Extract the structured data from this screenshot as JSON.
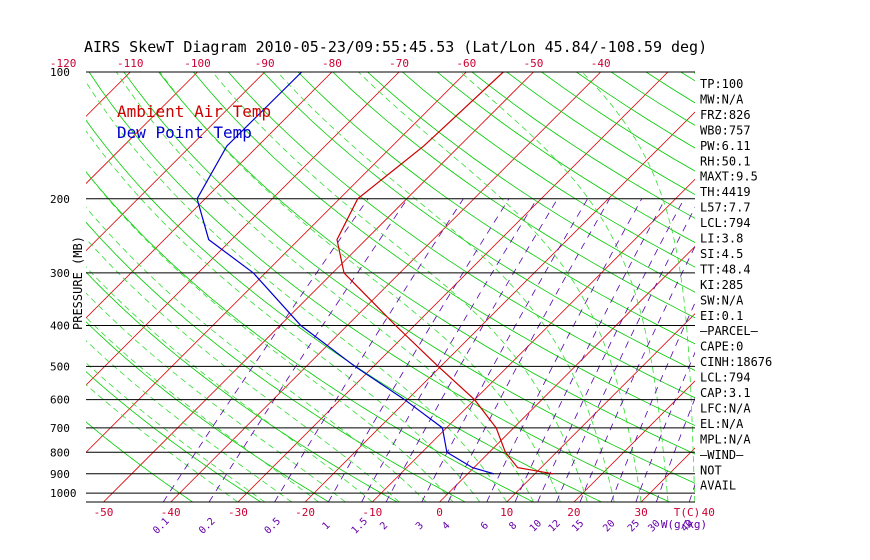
{
  "chart_data": {
    "type": "line",
    "title": "AIRS SkewT Diagram 2010-05-23/09:55:45.53 (Lat/Lon 45.84/-108.59 deg)",
    "ylabel": "PRESSURE (MB)",
    "y_scale": "log",
    "ylim": [
      1050,
      100
    ],
    "pressure_ticks": [
      100,
      200,
      300,
      400,
      500,
      600,
      700,
      800,
      900,
      1000
    ],
    "temperature_ticks_bottom": [
      -50,
      -40,
      -30,
      -20,
      -10,
      0,
      10,
      20,
      30,
      40
    ],
    "temperature_ticks_top": [
      -120,
      -110,
      -100,
      -90,
      -80,
      -70,
      -60,
      -50,
      -40
    ],
    "mixing_ratio_labels": [
      "0.1",
      "0.2",
      "0.5",
      "1",
      "1.5",
      "2",
      "3",
      "4",
      "6",
      "8",
      "10",
      "12",
      "15",
      "20",
      "25",
      "30",
      "40"
    ],
    "bottom_axis_unit": "T(C)",
    "mixing_ratio_unit": "W(g/kg)",
    "legend": [
      "Ambient Air Temp",
      "Dew Point Temp"
    ],
    "legend_placement": "top-left",
    "series": [
      {
        "name": "Ambient Air Temp",
        "color": "#cc0000",
        "points": [
          {
            "p": 100,
            "t": -54.5
          },
          {
            "p": 150,
            "t": -55.3
          },
          {
            "p": 200,
            "t": -57.3
          },
          {
            "p": 250,
            "t": -54.3
          },
          {
            "p": 300,
            "t": -48.3
          },
          {
            "p": 400,
            "t": -32.8
          },
          {
            "p": 500,
            "t": -20.4
          },
          {
            "p": 600,
            "t": -10.0
          },
          {
            "p": 700,
            "t": -2.6
          },
          {
            "p": 800,
            "t": 2.4
          },
          {
            "p": 870,
            "t": 6.5
          },
          {
            "p": 900,
            "t": 12.7
          }
        ]
      },
      {
        "name": "Dew Point Temp",
        "color": "#0000cc",
        "points": [
          {
            "p": 100,
            "t": -84.5
          },
          {
            "p": 150,
            "t": -84.6
          },
          {
            "p": 200,
            "t": -81.2
          },
          {
            "p": 250,
            "t": -73.4
          },
          {
            "p": 300,
            "t": -61.8
          },
          {
            "p": 400,
            "t": -46.9
          },
          {
            "p": 500,
            "t": -32.8
          },
          {
            "p": 600,
            "t": -20.4
          },
          {
            "p": 700,
            "t": -10.6
          },
          {
            "p": 800,
            "t": -6.3
          },
          {
            "p": 870,
            "t": -0.2
          },
          {
            "p": 900,
            "t": 3.9
          }
        ]
      }
    ],
    "grid": {
      "isobars": true,
      "isotherms": true,
      "dry_adiabats": true,
      "moist_adiabats": true,
      "mixing_ratio": true
    },
    "colors": {
      "isobar": "#000000",
      "isotherm": "#dd0000",
      "dry_adiabat": "#00cc00",
      "moist_adiabat": "#33dd33",
      "mixing_ratio_dash": "#5500aa",
      "legend_air": "#cc0000",
      "legend_dew": "#0000cc",
      "bottom_axis": "#cc0033",
      "top_axis": "#cc0033",
      "mixing_ratio_label": "#6600aa"
    }
  },
  "indices": [
    "TP:100",
    "MW:N/A",
    "FRZ:826",
    "WB0:757",
    "PW:6.11",
    "RH:50.1",
    "MAXT:9.5",
    "TH:4419",
    "L57:7.7",
    "LCL:794",
    "LI:3.8",
    "SI:4.5",
    "TT:48.4",
    "KI:285",
    "SW:N/A",
    "EI:0.1",
    "–PARCEL–",
    "CAPE:0",
    "CINH:18676",
    "LCL:794",
    "CAP:3.1",
    "LFC:N/A",
    "EL:N/A",
    "MPL:N/A",
    "–WIND–",
    "NOT",
    "AVAIL"
  ]
}
